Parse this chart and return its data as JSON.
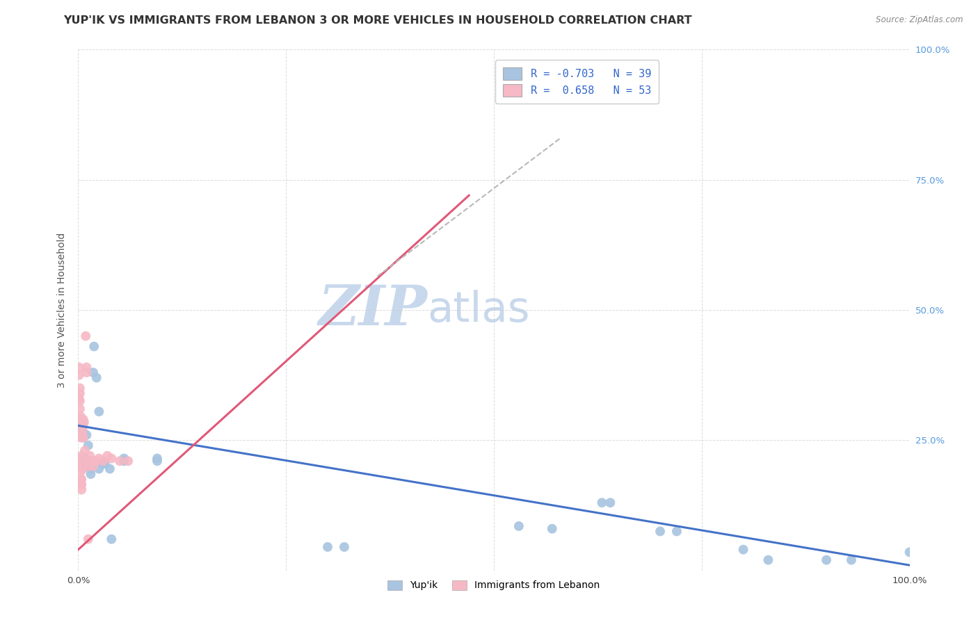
{
  "title": "YUP'IK VS IMMIGRANTS FROM LEBANON 3 OR MORE VEHICLES IN HOUSEHOLD CORRELATION CHART",
  "source": "Source: ZipAtlas.com",
  "ylabel": "3 or more Vehicles in Household",
  "ytick_labels": [
    "",
    "25.0%",
    "50.0%",
    "75.0%",
    "100.0%"
  ],
  "ytick_positions": [
    0,
    0.25,
    0.5,
    0.75,
    1.0
  ],
  "xtick_positions": [
    0,
    0.25,
    0.5,
    0.75,
    1.0
  ],
  "watermark_zip": "ZIP",
  "watermark_atlas": "atlas",
  "legend_blue_R": "-0.703",
  "legend_blue_N": "39",
  "legend_pink_R": "0.658",
  "legend_pink_N": "53",
  "legend_label_blue": "Yup'ik",
  "legend_label_pink": "Immigrants from Lebanon",
  "blue_color": "#a8c4e0",
  "pink_color": "#f5b8c4",
  "trend_blue_color": "#4472c8",
  "trend_pink_color": "#e05878",
  "trend_dashed_color": "#b8b8b8",
  "blue_points": [
    [
      0.003,
      0.285
    ],
    [
      0.003,
      0.27
    ],
    [
      0.004,
      0.275
    ],
    [
      0.005,
      0.27
    ],
    [
      0.005,
      0.26
    ],
    [
      0.006,
      0.255
    ],
    [
      0.007,
      0.21
    ],
    [
      0.008,
      0.215
    ],
    [
      0.009,
      0.2
    ],
    [
      0.01,
      0.26
    ],
    [
      0.012,
      0.24
    ],
    [
      0.015,
      0.195
    ],
    [
      0.015,
      0.185
    ],
    [
      0.018,
      0.38
    ],
    [
      0.019,
      0.43
    ],
    [
      0.022,
      0.37
    ],
    [
      0.025,
      0.305
    ],
    [
      0.025,
      0.195
    ],
    [
      0.03,
      0.205
    ],
    [
      0.032,
      0.205
    ],
    [
      0.038,
      0.195
    ],
    [
      0.04,
      0.06
    ],
    [
      0.055,
      0.215
    ],
    [
      0.055,
      0.21
    ],
    [
      0.095,
      0.215
    ],
    [
      0.095,
      0.21
    ],
    [
      0.3,
      0.045
    ],
    [
      0.32,
      0.045
    ],
    [
      0.53,
      0.085
    ],
    [
      0.57,
      0.08
    ],
    [
      0.63,
      0.13
    ],
    [
      0.64,
      0.13
    ],
    [
      0.7,
      0.075
    ],
    [
      0.72,
      0.075
    ],
    [
      0.8,
      0.04
    ],
    [
      0.83,
      0.02
    ],
    [
      0.9,
      0.02
    ],
    [
      0.93,
      0.02
    ],
    [
      1.0,
      0.035
    ]
  ],
  "pink_points": [
    [
      0.001,
      0.39
    ],
    [
      0.001,
      0.375
    ],
    [
      0.001,
      0.33
    ],
    [
      0.002,
      0.35
    ],
    [
      0.002,
      0.34
    ],
    [
      0.002,
      0.325
    ],
    [
      0.002,
      0.31
    ],
    [
      0.002,
      0.29
    ],
    [
      0.003,
      0.295
    ],
    [
      0.003,
      0.29
    ],
    [
      0.003,
      0.285
    ],
    [
      0.003,
      0.28
    ],
    [
      0.003,
      0.255
    ],
    [
      0.003,
      0.215
    ],
    [
      0.003,
      0.205
    ],
    [
      0.003,
      0.2
    ],
    [
      0.003,
      0.19
    ],
    [
      0.003,
      0.175
    ],
    [
      0.003,
      0.165
    ],
    [
      0.004,
      0.22
    ],
    [
      0.004,
      0.21
    ],
    [
      0.004,
      0.175
    ],
    [
      0.004,
      0.165
    ],
    [
      0.004,
      0.155
    ],
    [
      0.005,
      0.285
    ],
    [
      0.005,
      0.27
    ],
    [
      0.005,
      0.26
    ],
    [
      0.005,
      0.195
    ],
    [
      0.006,
      0.29
    ],
    [
      0.006,
      0.28
    ],
    [
      0.006,
      0.255
    ],
    [
      0.006,
      0.21
    ],
    [
      0.006,
      0.2
    ],
    [
      0.007,
      0.285
    ],
    [
      0.007,
      0.205
    ],
    [
      0.008,
      0.23
    ],
    [
      0.009,
      0.45
    ],
    [
      0.01,
      0.39
    ],
    [
      0.01,
      0.38
    ],
    [
      0.012,
      0.2
    ],
    [
      0.012,
      0.06
    ],
    [
      0.014,
      0.22
    ],
    [
      0.015,
      0.21
    ],
    [
      0.018,
      0.21
    ],
    [
      0.018,
      0.2
    ],
    [
      0.02,
      0.21
    ],
    [
      0.022,
      0.21
    ],
    [
      0.025,
      0.215
    ],
    [
      0.03,
      0.21
    ],
    [
      0.035,
      0.22
    ],
    [
      0.04,
      0.215
    ],
    [
      0.05,
      0.21
    ],
    [
      0.06,
      0.21
    ]
  ],
  "blue_trend_x": [
    0.0,
    1.0
  ],
  "blue_trend_y": [
    0.278,
    0.01
  ],
  "pink_trend_x": [
    0.0,
    0.47
  ],
  "pink_trend_y": [
    0.04,
    0.72
  ],
  "dashed_trend_x": [
    0.36,
    0.58
  ],
  "dashed_trend_y": [
    0.565,
    0.83
  ],
  "xlim": [
    0.0,
    1.0
  ],
  "ylim": [
    0.0,
    1.0
  ],
  "fig_width": 14.06,
  "fig_height": 8.92,
  "background_color": "#ffffff",
  "grid_color": "#cccccc",
  "right_axis_color": "#5599dd",
  "title_color": "#333333",
  "source_color": "#888888",
  "title_fontsize": 11.5,
  "axis_label_fontsize": 10,
  "tick_fontsize": 9.5,
  "watermark_color": "#c8d8ec",
  "watermark_zip_fontsize": 58,
  "watermark_atlas_fontsize": 44
}
